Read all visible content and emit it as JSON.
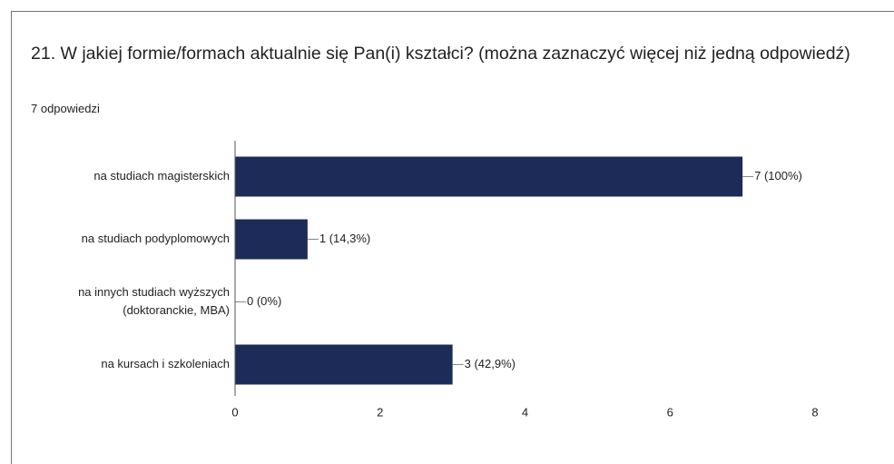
{
  "chart_data": {
    "type": "hbar",
    "title": "21. W jakiej formie/formach aktualnie się Pan(i) kształci? (można zaznaczyć więcej niż jedną odpowiedź)",
    "subtitle": "7 odpowiedzi",
    "categories": [
      [
        "na studiach magisterskich"
      ],
      [
        "na studiach podyplomowych"
      ],
      [
        "na innych studiach wyższych",
        "(doktoranckie, MBA)"
      ],
      [
        "na kursach i szkoleniach"
      ]
    ],
    "values": [
      7,
      1,
      0,
      3
    ],
    "value_labels": [
      "7 (100%)",
      "1 (14,3%)",
      "0 (0%)",
      "3 (42,9%)"
    ],
    "color": "#1c2b57",
    "xlim": [
      0,
      8
    ],
    "xticks": [
      0,
      2,
      4,
      6,
      8
    ],
    "grid": false
  }
}
